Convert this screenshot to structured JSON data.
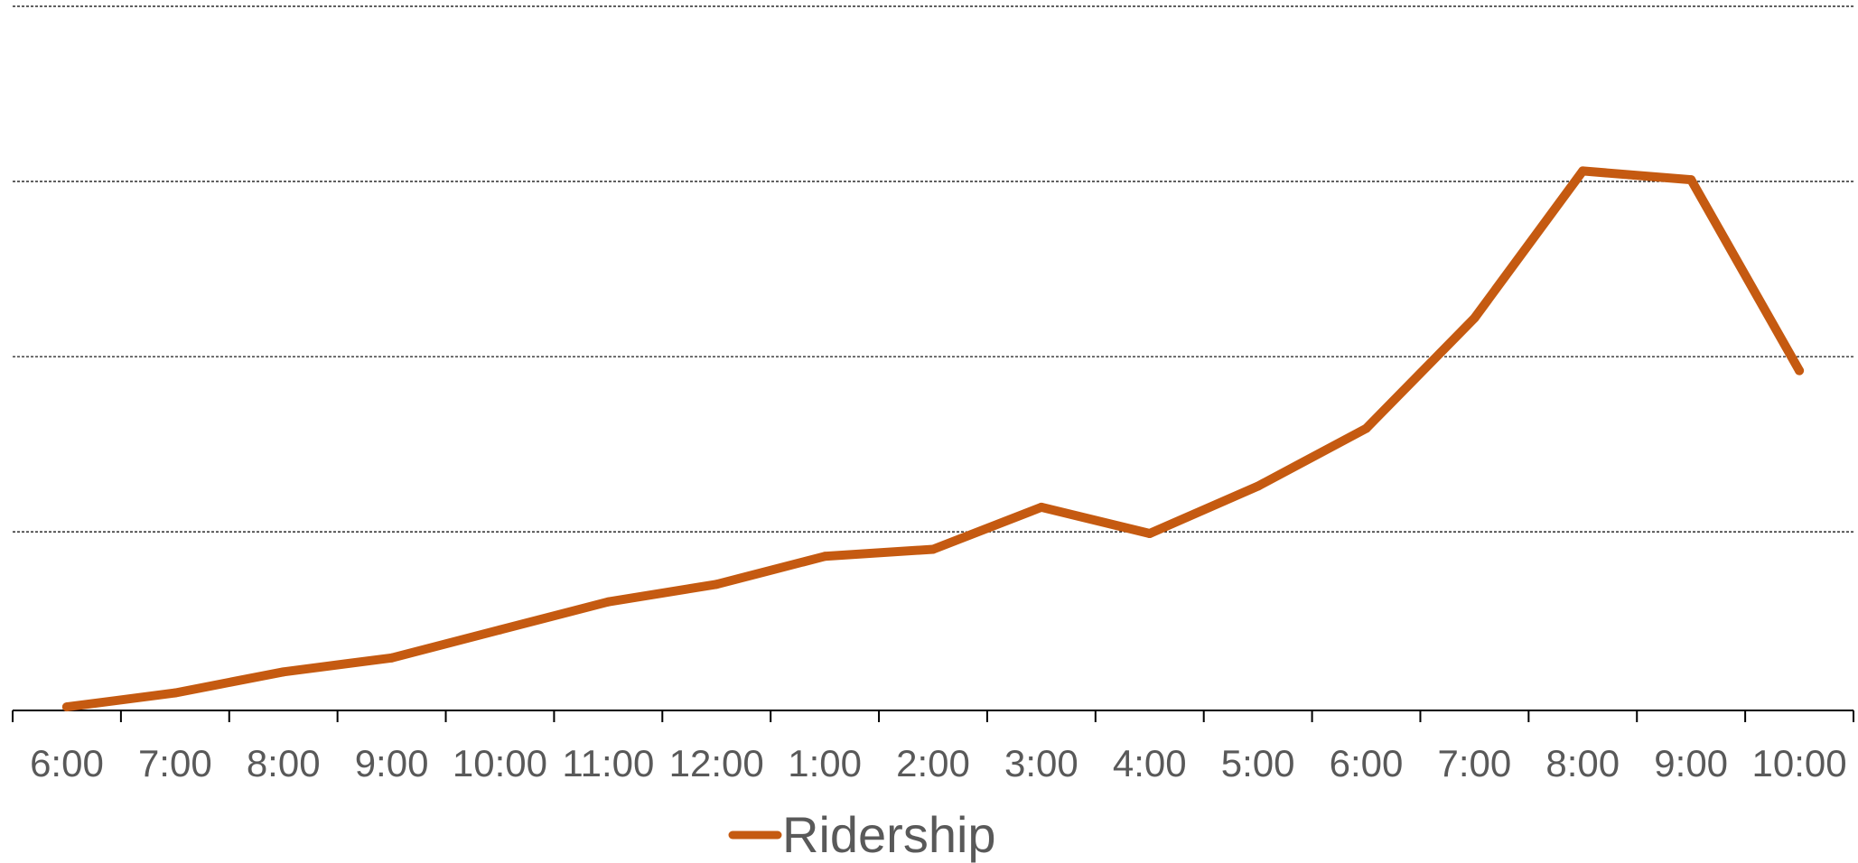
{
  "chart_data": {
    "type": "line",
    "title": "",
    "xlabel": "",
    "ylabel": "",
    "categories": [
      "6:00",
      "7:00",
      "8:00",
      "9:00",
      "10:00",
      "11:00",
      "12:00",
      "1:00",
      "2:00",
      "3:00",
      "4:00",
      "5:00",
      "6:00",
      "7:00",
      "8:00",
      "9:00",
      "10:00"
    ],
    "series": [
      {
        "name": "Ridership",
        "color": "#C55A11",
        "values": [
          0.0,
          0.4,
          1.0,
          1.4,
          2.2,
          3.0,
          3.5,
          4.3,
          4.5,
          5.7,
          4.95,
          6.3,
          7.95,
          11.1,
          15.3,
          15.05,
          9.6
        ]
      }
    ],
    "ylim": [
      -0.1,
      20.0
    ],
    "y_gridlines": [
      5,
      10,
      15,
      20
    ],
    "y_tick_labels_visible": false,
    "grid": true,
    "grid_style": "dashed",
    "legend": {
      "position": "bottom",
      "entries": [
        "Ridership"
      ]
    }
  }
}
